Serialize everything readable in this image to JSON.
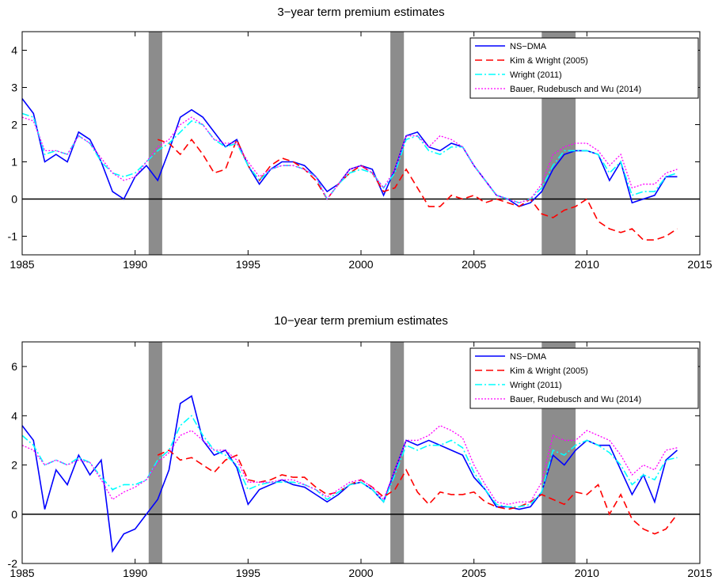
{
  "chart_data": [
    {
      "type": "line",
      "title": "3−year term premium estimates",
      "x": [
        1985,
        1985.5,
        1986,
        1986.5,
        1987,
        1987.5,
        1988,
        1988.5,
        1989,
        1989.5,
        1990,
        1990.5,
        1991,
        1991.5,
        1992,
        1992.5,
        1993,
        1993.5,
        1994,
        1994.5,
        1995,
        1995.5,
        1996,
        1996.5,
        1997,
        1997.5,
        1998,
        1998.5,
        1999,
        1999.5,
        2000,
        2000.5,
        2001,
        2001.5,
        2002,
        2002.5,
        2003,
        2003.5,
        2004,
        2004.5,
        2005,
        2005.5,
        2006,
        2006.5,
        2007,
        2007.5,
        2008,
        2008.5,
        2009,
        2009.5,
        2010,
        2010.5,
        2011,
        2011.5,
        2012,
        2012.5,
        2013,
        2013.5,
        2014
      ],
      "series": [
        {
          "name": "NS−DMA",
          "color": "#0000ff",
          "style": "solid",
          "values": [
            2.7,
            2.3,
            1.0,
            1.2,
            1.0,
            1.8,
            1.6,
            1.0,
            0.2,
            0.0,
            0.6,
            0.9,
            0.5,
            1.3,
            2.2,
            2.4,
            2.2,
            1.8,
            1.4,
            1.6,
            0.9,
            0.4,
            0.8,
            1.0,
            1.0,
            0.9,
            0.6,
            0.2,
            0.4,
            0.8,
            0.9,
            0.8,
            0.1,
            0.8,
            1.7,
            1.8,
            1.4,
            1.3,
            1.5,
            1.4,
            0.9,
            0.5,
            0.1,
            0.0,
            -0.2,
            -0.1,
            0.2,
            0.8,
            1.2,
            1.3,
            1.3,
            1.2,
            0.5,
            1.0,
            -0.1,
            0.0,
            0.1,
            0.6,
            0.6
          ]
        },
        {
          "name": "Kim & Wright (2005)",
          "color": "#ff0000",
          "style": "dashed",
          "values": [
            null,
            null,
            null,
            null,
            null,
            null,
            null,
            null,
            null,
            null,
            null,
            null,
            1.6,
            1.5,
            1.2,
            1.6,
            1.2,
            0.7,
            0.8,
            1.6,
            0.9,
            0.5,
            0.9,
            1.1,
            1.0,
            0.8,
            0.5,
            0.0,
            0.4,
            0.7,
            0.9,
            0.7,
            0.2,
            0.3,
            0.8,
            0.3,
            -0.2,
            -0.2,
            0.1,
            0.0,
            0.1,
            -0.1,
            0.0,
            -0.1,
            -0.2,
            0.0,
            -0.4,
            -0.5,
            -0.3,
            -0.2,
            0.0,
            -0.6,
            -0.8,
            -0.9,
            -0.8,
            -1.1,
            -1.1,
            -1.0,
            -0.8
          ]
        },
        {
          "name": "Wright (2011)",
          "color": "#00ffff",
          "style": "dashdot",
          "values": [
            2.3,
            2.2,
            1.2,
            1.3,
            1.2,
            1.7,
            1.5,
            1.0,
            0.7,
            0.6,
            0.7,
            1.0,
            1.3,
            1.5,
            1.8,
            2.1,
            2.0,
            1.6,
            1.4,
            1.5,
            0.9,
            0.5,
            0.8,
            0.9,
            0.9,
            0.8,
            0.6,
            0.0,
            0.4,
            0.7,
            0.8,
            0.7,
            0.3,
            0.7,
            1.6,
            1.7,
            1.3,
            1.2,
            1.4,
            1.4,
            0.9,
            0.5,
            0.1,
            0.0,
            -0.1,
            0.0,
            0.3,
            0.9,
            1.3,
            1.3,
            1.3,
            1.2,
            0.7,
            1.0,
            0.1,
            0.2,
            0.2,
            0.6,
            0.7
          ]
        },
        {
          "name": "Bauer, Rudebusch and Wu (2014)",
          "color": "#ff00ff",
          "style": "dotted",
          "values": [
            2.2,
            2.1,
            1.3,
            1.3,
            1.2,
            1.7,
            1.5,
            1.1,
            0.7,
            0.5,
            0.6,
            1.0,
            1.4,
            1.6,
            2.0,
            2.2,
            2.0,
            1.6,
            1.5,
            1.5,
            1.0,
            0.6,
            0.8,
            0.9,
            0.9,
            0.8,
            0.6,
            0.0,
            0.4,
            0.8,
            0.9,
            0.7,
            0.3,
            0.8,
            1.7,
            1.7,
            1.4,
            1.7,
            1.6,
            1.4,
            0.9,
            0.5,
            0.1,
            0.0,
            -0.1,
            0.0,
            0.4,
            1.2,
            1.4,
            1.5,
            1.5,
            1.3,
            0.9,
            1.2,
            0.3,
            0.4,
            0.4,
            0.7,
            0.8
          ]
        }
      ],
      "shaded_periods": [
        [
          1990.6,
          1991.2
        ],
        [
          2001.3,
          2001.9
        ],
        [
          2008.0,
          2009.5
        ]
      ],
      "xlim": [
        1985,
        2015
      ],
      "xticks": [
        1985,
        1990,
        1995,
        2000,
        2005,
        2010,
        2015
      ],
      "ylim": [
        -1.5,
        4.5
      ],
      "yticks": [
        -1,
        0,
        1,
        2,
        3,
        4
      ],
      "legend": "upper right"
    },
    {
      "type": "line",
      "title": "10−year term premium estimates",
      "x": [
        1985,
        1985.5,
        1986,
        1986.5,
        1987,
        1987.5,
        1988,
        1988.5,
        1989,
        1989.5,
        1990,
        1990.5,
        1991,
        1991.5,
        1992,
        1992.5,
        1993,
        1993.5,
        1994,
        1994.5,
        1995,
        1995.5,
        1996,
        1996.5,
        1997,
        1997.5,
        1998,
        1998.5,
        1999,
        1999.5,
        2000,
        2000.5,
        2001,
        2001.5,
        2002,
        2002.5,
        2003,
        2003.5,
        2004,
        2004.5,
        2005,
        2005.5,
        2006,
        2006.5,
        2007,
        2007.5,
        2008,
        2008.5,
        2009,
        2009.5,
        2010,
        2010.5,
        2011,
        2011.5,
        2012,
        2012.5,
        2013,
        2013.5,
        2014
      ],
      "series": [
        {
          "name": "NS−DMA",
          "color": "#0000ff",
          "style": "solid",
          "values": [
            3.6,
            3.0,
            0.2,
            1.8,
            1.2,
            2.4,
            1.6,
            2.2,
            -1.5,
            -0.8,
            -0.6,
            0.0,
            0.6,
            1.8,
            4.5,
            4.8,
            3.0,
            2.4,
            2.6,
            1.9,
            0.4,
            1.0,
            1.2,
            1.4,
            1.2,
            1.1,
            0.8,
            0.5,
            0.8,
            1.2,
            1.3,
            1.0,
            0.5,
            1.8,
            3.0,
            2.8,
            3.0,
            2.8,
            2.6,
            2.4,
            1.5,
            1.0,
            0.3,
            0.3,
            0.2,
            0.3,
            0.9,
            2.4,
            2.0,
            2.6,
            3.0,
            2.8,
            2.8,
            1.8,
            0.8,
            1.6,
            0.5,
            2.2,
            2.6
          ]
        },
        {
          "name": "Kim & Wright (2005)",
          "color": "#ff0000",
          "style": "dashed",
          "values": [
            null,
            null,
            null,
            null,
            null,
            null,
            null,
            null,
            null,
            null,
            null,
            null,
            2.4,
            2.6,
            2.2,
            2.3,
            2.0,
            1.7,
            2.2,
            2.4,
            1.4,
            1.3,
            1.4,
            1.6,
            1.5,
            1.5,
            1.1,
            0.8,
            0.9,
            1.2,
            1.4,
            1.1,
            0.7,
            1.0,
            1.8,
            0.9,
            0.4,
            0.9,
            0.8,
            0.8,
            0.9,
            0.5,
            0.3,
            0.2,
            0.3,
            0.5,
            0.8,
            0.6,
            0.4,
            0.9,
            0.8,
            1.2,
            0.0,
            0.8,
            -0.2,
            -0.6,
            -0.8,
            -0.6,
            0.0
          ]
        },
        {
          "name": "Wright (2011)",
          "color": "#00ffff",
          "style": "dashdot",
          "values": [
            3.2,
            2.8,
            2.0,
            2.2,
            2.0,
            2.3,
            2.1,
            1.5,
            1.0,
            1.2,
            1.2,
            1.4,
            2.2,
            2.6,
            3.6,
            4.0,
            3.2,
            2.6,
            2.4,
            2.0,
            1.0,
            1.2,
            1.3,
            1.3,
            1.3,
            1.2,
            1.0,
            0.6,
            0.9,
            1.2,
            1.3,
            1.0,
            0.5,
            1.6,
            2.8,
            2.6,
            2.8,
            2.8,
            3.0,
            2.7,
            1.7,
            1.0,
            0.4,
            0.3,
            0.3,
            0.4,
            0.9,
            2.6,
            2.4,
            2.8,
            3.0,
            2.8,
            2.5,
            2.0,
            1.2,
            1.6,
            1.4,
            2.2,
            2.3
          ]
        },
        {
          "name": "Bauer, Rudebusch and Wu (2014)",
          "color": "#ff00ff",
          "style": "dotted",
          "values": [
            2.8,
            2.6,
            2.0,
            2.2,
            2.0,
            2.2,
            2.1,
            1.4,
            0.6,
            0.9,
            1.1,
            1.4,
            2.1,
            2.5,
            3.2,
            3.4,
            3.0,
            2.6,
            2.6,
            2.2,
            1.3,
            1.3,
            1.3,
            1.4,
            1.4,
            1.2,
            1.0,
            0.7,
            1.0,
            1.3,
            1.4,
            1.1,
            0.6,
            1.8,
            3.0,
            3.0,
            3.2,
            3.6,
            3.4,
            3.1,
            2.0,
            1.2,
            0.5,
            0.4,
            0.5,
            0.5,
            1.3,
            3.2,
            3.0,
            3.0,
            3.4,
            3.2,
            3.0,
            2.4,
            1.6,
            2.0,
            1.8,
            2.6,
            2.7
          ]
        }
      ],
      "shaded_periods": [
        [
          1990.6,
          1991.2
        ],
        [
          2001.3,
          2001.9
        ],
        [
          2008.0,
          2009.5
        ]
      ],
      "xlim": [
        1985,
        2015
      ],
      "xticks": [
        1985,
        1990,
        1995,
        2000,
        2005,
        2010,
        2015
      ],
      "ylim": [
        -2,
        7
      ],
      "yticks": [
        -2,
        0,
        2,
        4,
        6
      ],
      "legend": "upper right"
    }
  ]
}
